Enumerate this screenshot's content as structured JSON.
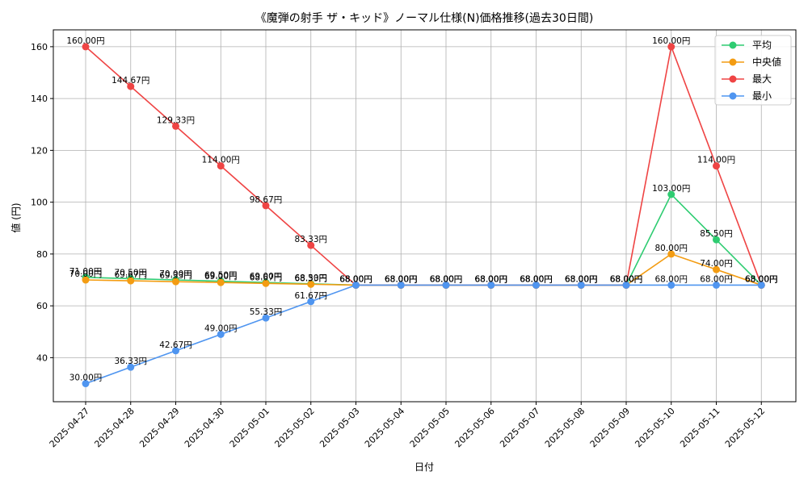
{
  "chart_data": {
    "type": "line",
    "title": "《魔弾の射手 ザ・キッド》ノーマル仕様(N)価格推移(過去30日間)",
    "xlabel": "日付",
    "ylabel": "値 (円)",
    "ylim": [
      23,
      166.5
    ],
    "yticks": [
      40,
      60,
      80,
      100,
      120,
      140,
      160
    ],
    "grid": true,
    "legend_position": "top-right",
    "value_suffix": "円",
    "categories": [
      "2025-04-27",
      "2025-04-28",
      "2025-04-29",
      "2025-04-30",
      "2025-05-01",
      "2025-05-02",
      "2025-05-03",
      "2025-05-04",
      "2025-05-05",
      "2025-05-06",
      "2025-05-07",
      "2025-05-08",
      "2025-05-09",
      "2025-05-10",
      "2025-05-11",
      "2025-05-12"
    ],
    "series": [
      {
        "name": "平均",
        "color": "#2ecc71",
        "values": [
          71.0,
          70.5,
          70.0,
          69.5,
          69.0,
          68.5,
          68.0,
          68.0,
          68.0,
          68.0,
          68.0,
          68.0,
          68.0,
          103.0,
          85.5,
          68.0
        ]
      },
      {
        "name": "中央値",
        "color": "#f39c12",
        "values": [
          70.0,
          69.67,
          69.33,
          69.0,
          68.67,
          68.33,
          68.0,
          68.0,
          68.0,
          68.0,
          68.0,
          68.0,
          68.0,
          80.0,
          74.0,
          68.0
        ]
      },
      {
        "name": "最大",
        "color": "#ef4444",
        "values": [
          160.0,
          144.67,
          129.33,
          114.0,
          98.67,
          83.33,
          68.0,
          68.0,
          68.0,
          68.0,
          68.0,
          68.0,
          68.0,
          160.0,
          114.0,
          68.0
        ]
      },
      {
        "name": "最小",
        "color": "#4f95f0",
        "values": [
          30.0,
          36.33,
          42.67,
          49.0,
          55.33,
          61.67,
          68.0,
          68.0,
          68.0,
          68.0,
          68.0,
          68.0,
          68.0,
          68.0,
          68.0,
          68.0
        ]
      }
    ]
  }
}
